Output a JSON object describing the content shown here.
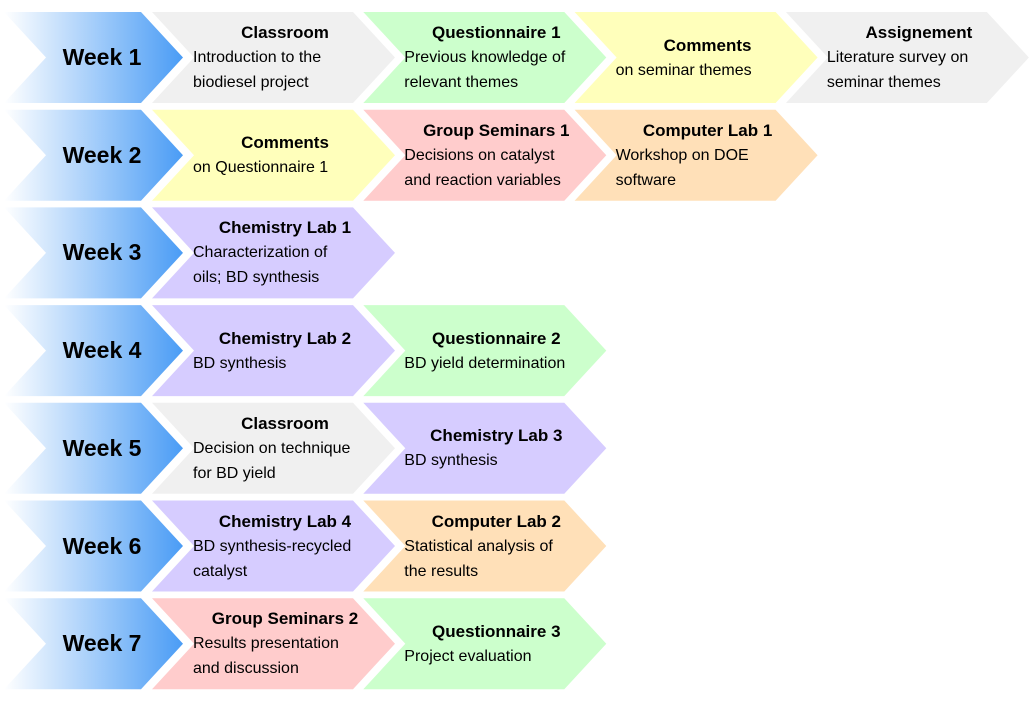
{
  "colors": {
    "week_gradient_start": "#ffffff",
    "week_gradient_end": "#4a9cf5",
    "classroom": "#f0f0f0",
    "questionnaire": "#ccffcc",
    "comments": "#ffffbb",
    "seminar": "#ffcccc",
    "computer": "#ffe0b8",
    "chemistry": "#d6ccff",
    "assignment": "#f0f0f0"
  },
  "weeks": [
    {
      "label": "Week 1",
      "activities": [
        {
          "type": "classroom",
          "title": "Classroom",
          "body": "Introduction to the\nbiodiesel project"
        },
        {
          "type": "questionnaire",
          "title": "Questionnaire 1",
          "body": "Previous knowledge of\nrelevant themes"
        },
        {
          "type": "comments",
          "title": "Comments",
          "body": "on seminar themes"
        },
        {
          "type": "assignment",
          "title": "Assignement",
          "body": "Literature survey on\nseminar themes"
        }
      ]
    },
    {
      "label": "Week 2",
      "activities": [
        {
          "type": "comments",
          "title": "Comments",
          "body": "on Questionnaire 1"
        },
        {
          "type": "seminar",
          "title": "Group Seminars 1",
          "body": "Decisions on catalyst\nand reaction variables"
        },
        {
          "type": "computer",
          "title": "Computer Lab 1",
          "body": "Workshop on DOE\nsoftware"
        }
      ]
    },
    {
      "label": "Week 3",
      "activities": [
        {
          "type": "chemistry",
          "title": "Chemistry Lab 1",
          "body": "Characterization of\noils; BD synthesis"
        }
      ]
    },
    {
      "label": "Week 4",
      "activities": [
        {
          "type": "chemistry",
          "title": "Chemistry Lab 2",
          "body": "BD synthesis"
        },
        {
          "type": "questionnaire",
          "title": "Questionnaire 2",
          "body": "BD yield determination"
        }
      ]
    },
    {
      "label": "Week 5",
      "activities": [
        {
          "type": "classroom",
          "title": "Classroom",
          "body": "Decision on technique\nfor BD yield"
        },
        {
          "type": "chemistry",
          "title": "Chemistry Lab 3",
          "body": "BD synthesis"
        }
      ]
    },
    {
      "label": "Week 6",
      "activities": [
        {
          "type": "chemistry",
          "title": "Chemistry Lab 4",
          "body": "BD synthesis-recycled\ncatalyst"
        },
        {
          "type": "computer",
          "title": "Computer Lab 2",
          "body": "Statistical analysis of\nthe results"
        }
      ]
    },
    {
      "label": "Week 7",
      "activities": [
        {
          "type": "seminar",
          "title": "Group Seminars 2",
          "body": "Results presentation\nand discussion"
        },
        {
          "type": "questionnaire",
          "title": "Questionnaire 3",
          "body": "Project evaluation"
        }
      ]
    }
  ]
}
